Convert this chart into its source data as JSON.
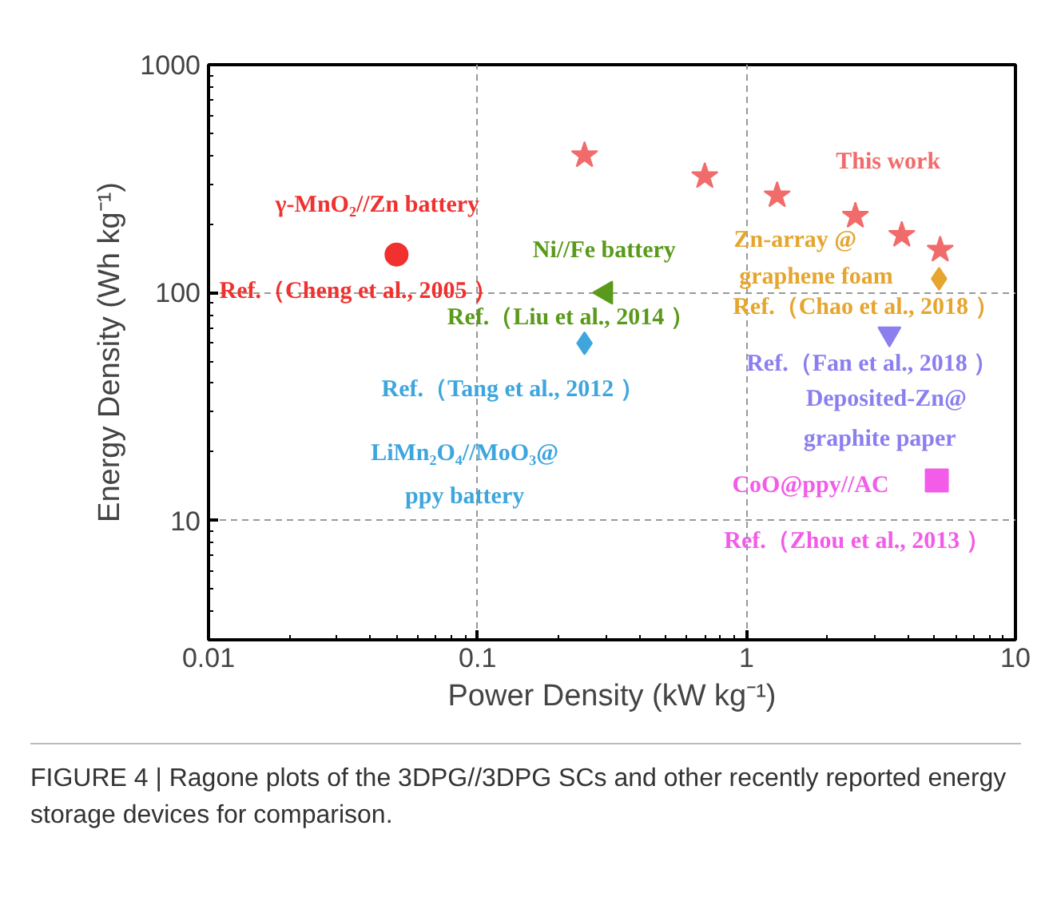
{
  "chart_data": {
    "type": "scatter",
    "xlabel": "Power Density (kW kg⁻¹)",
    "ylabel": "Energy Density (Wh kg⁻¹)",
    "log": "xy",
    "xlim": [
      0.01,
      10
    ],
    "ylim": [
      3,
      1000
    ],
    "xticks": [
      0.01,
      0.1,
      1,
      10
    ],
    "yticks": [
      10,
      100,
      1000
    ],
    "grid": true,
    "legend": false,
    "series": [
      {
        "name": "This work",
        "color": "#f26b6b",
        "marker": "star",
        "x": [
          0.25,
          0.7,
          1.3,
          2.54,
          3.78,
          5.25
        ],
        "values": [
          400,
          324,
          267,
          217,
          179,
          154
        ]
      },
      {
        "name": "γ-MnO₂//Zn battery\nRef.（Cheng et al., 2005 ）",
        "color": "#f0312f",
        "marker": "circle",
        "x": [
          0.05
        ],
        "values": [
          147
        ]
      },
      {
        "name": "Ni//Fe battery\nRef.（Liu et al., 2014 ）",
        "color": "#5a9a1a",
        "marker": "triangle",
        "x": [
          0.3
        ],
        "values": [
          100
        ]
      },
      {
        "name": "Ref.（Tang et al., 2012 ）\nLiMn₂O₄//MoO₃@\nppy battery",
        "color": "#3ea6dd",
        "marker": "diamond",
        "x": [
          0.25
        ],
        "values": [
          60
        ]
      },
      {
        "name": "Zn-array @\ngraphene foam\nRef.（Chao et al., 2018 ）",
        "color": "#e6a52e",
        "marker": "diamond",
        "x": [
          5.2
        ],
        "values": [
          115
        ]
      },
      {
        "name": "Ref.（Fan et al., 2018 ）\nDeposited-Zn@\ngraphite paper",
        "color": "#8b7ff0",
        "marker": "triangle",
        "x": [
          3.4
        ],
        "values": [
          66
        ]
      },
      {
        "name": "CoO@ppy//AC\nRef.（Zhou et al., 2013 ）",
        "color": "#f25ce8",
        "marker": "square",
        "x": [
          5.1
        ],
        "values": [
          15
        ]
      }
    ],
    "annotations": [
      "FIGURE 4 | Ragone plots of the 3DPG//3DPG SCs and other recently reported energy storage devices for comparison."
    ]
  }
}
